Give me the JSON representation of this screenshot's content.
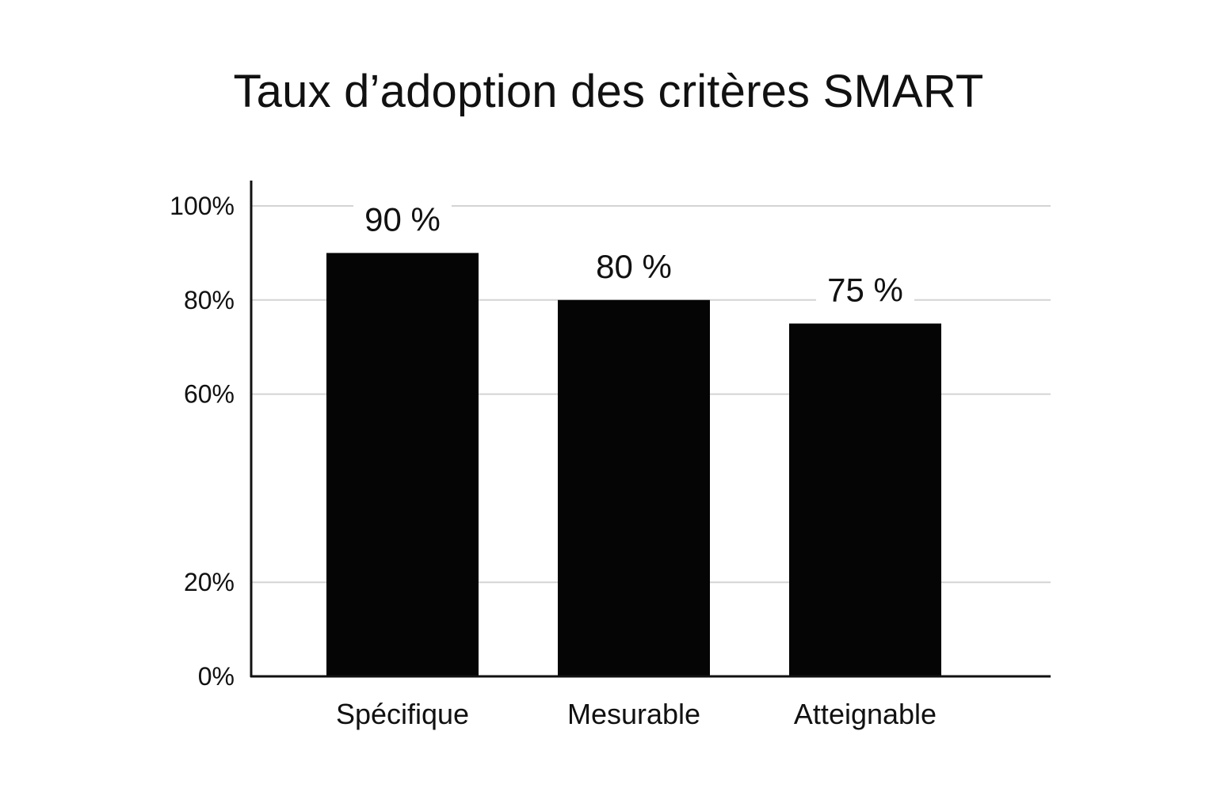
{
  "chart_data": {
    "type": "bar",
    "title": "Taux d’adoption des critères SMART",
    "categories": [
      "Spécifique",
      "Mesurable",
      "Atteignable"
    ],
    "values": [
      90,
      80,
      75
    ],
    "data_labels": [
      "90 %",
      "80 %",
      "75 %"
    ],
    "y_ticks": [
      0,
      20,
      60,
      80,
      100
    ],
    "y_tick_labels": [
      "0%",
      "20%",
      "60%",
      "80%",
      "100%"
    ],
    "ylim": [
      0,
      100
    ],
    "grid": true,
    "legend": "none",
    "colors": {
      "bar": "#050505",
      "grid": "#d4d4d4",
      "axis": "#111111",
      "text": "#111111"
    }
  }
}
